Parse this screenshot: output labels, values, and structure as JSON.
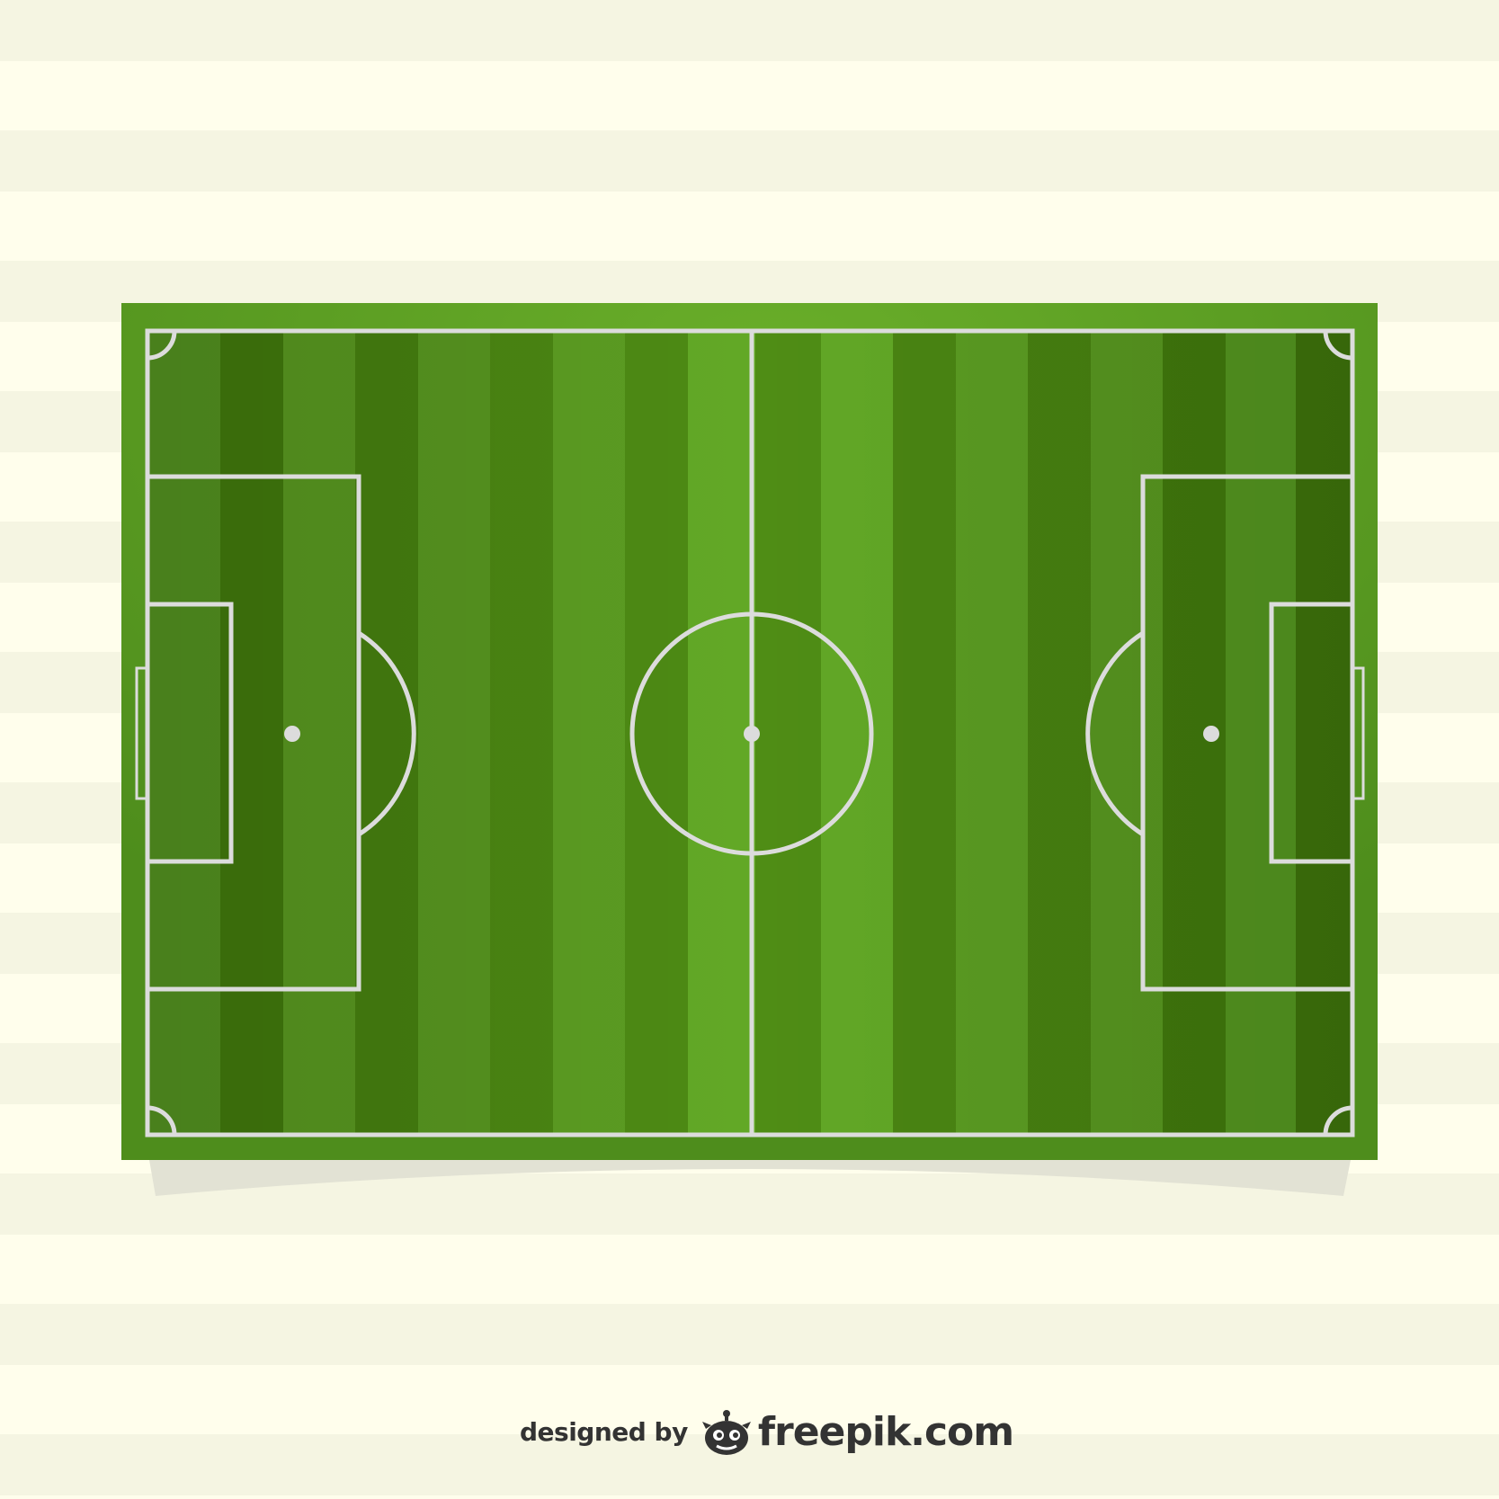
{
  "credit": {
    "prefix": "designed by",
    "brand": "freepik.com"
  },
  "icons": {
    "logo": "freepik-logo-icon"
  },
  "colors": {
    "background_stripe_light": "#fffeec",
    "background_stripe_dark": "#f5f5e2",
    "pitch_border": "#55921f",
    "stripe_center": "#62a826",
    "stripe_light": "#52921f",
    "stripe_dark": "#3f760c",
    "lines": "#dcdcdc",
    "text": "#333333"
  }
}
